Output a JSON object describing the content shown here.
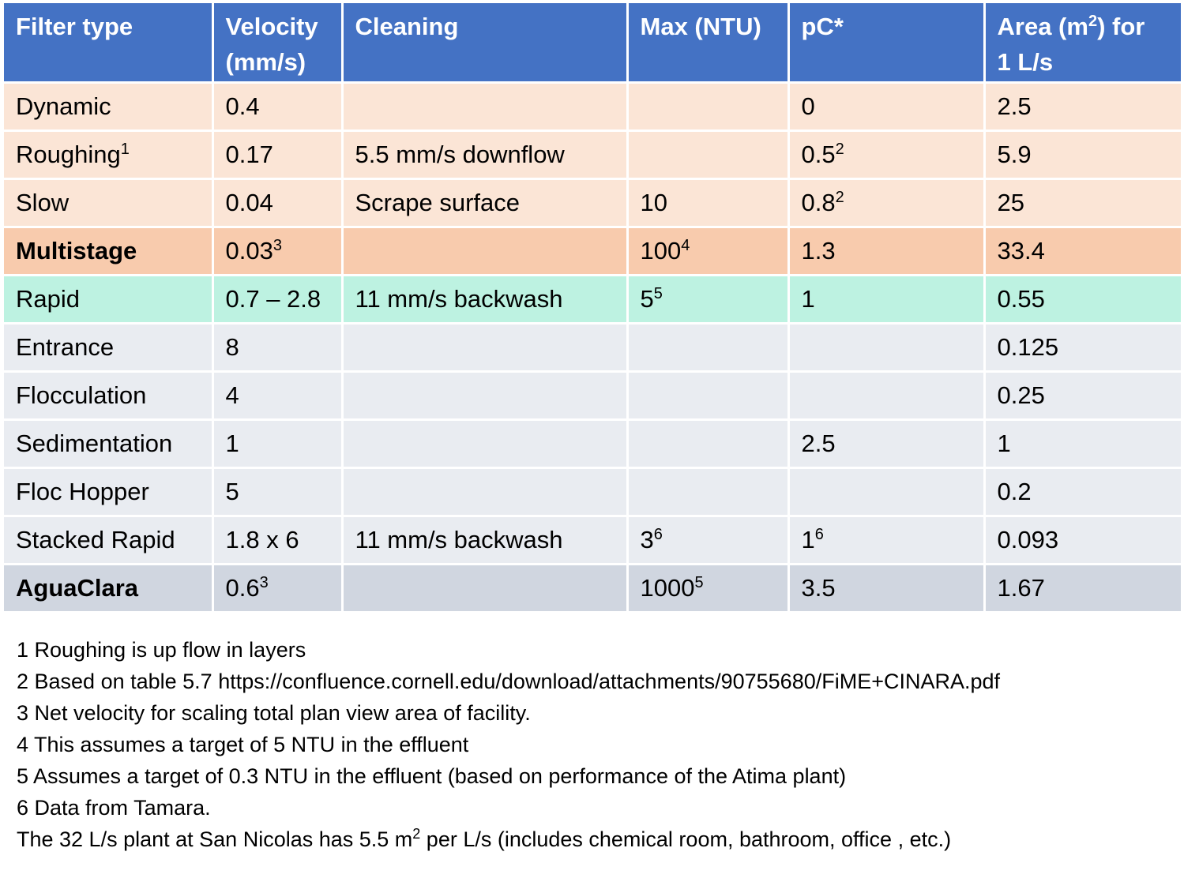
{
  "header": {
    "filter_type": "Filter type",
    "velocity_line1": "Velocity",
    "velocity_line2": "(mm/s)",
    "cleaning": "Cleaning",
    "max_ntu": "Max (NTU)",
    "pc": "pC*",
    "area_pre": "Area (m",
    "area_sup": "2",
    "area_post": ") for",
    "area_line2": "1 L/s"
  },
  "rows": [
    {
      "name": "Dynamic",
      "name_sup": "",
      "velocity": "0.4",
      "velocity_sup": "",
      "cleaning": "",
      "max": "",
      "max_sup": "",
      "pc": "0",
      "pc_sup": "",
      "area": "2.5"
    },
    {
      "name": "Roughing",
      "name_sup": "1",
      "velocity": "0.17",
      "velocity_sup": "",
      "cleaning": "5.5 mm/s downflow",
      "max": "",
      "max_sup": "",
      "pc": "0.5",
      "pc_sup": "2",
      "area": "5.9"
    },
    {
      "name": "Slow",
      "name_sup": "",
      "velocity": "0.04",
      "velocity_sup": "",
      "cleaning": "Scrape surface",
      "max": "10",
      "max_sup": "",
      "pc": "0.8",
      "pc_sup": "2",
      "area": "25"
    },
    {
      "name": "Multistage",
      "name_sup": "",
      "velocity": "0.03",
      "velocity_sup": "3",
      "cleaning": "",
      "max": "100",
      "max_sup": "4",
      "pc": "1.3",
      "pc_sup": "",
      "area": "33.4"
    },
    {
      "name": "Rapid",
      "name_sup": "",
      "velocity": "0.7 – 2.8",
      "velocity_sup": "",
      "cleaning": "11 mm/s backwash",
      "max": "5",
      "max_sup": "5",
      "pc": "1",
      "pc_sup": "",
      "area": "0.55"
    },
    {
      "name": "Entrance",
      "name_sup": "",
      "velocity": "8",
      "velocity_sup": "",
      "cleaning": "",
      "max": "",
      "max_sup": "",
      "pc": "",
      "pc_sup": "",
      "area": "0.125"
    },
    {
      "name": "Flocculation",
      "name_sup": "",
      "velocity": "4",
      "velocity_sup": "",
      "cleaning": "",
      "max": "",
      "max_sup": "",
      "pc": "",
      "pc_sup": "",
      "area": "0.25"
    },
    {
      "name": "Sedimentation",
      "name_sup": "",
      "velocity": "1",
      "velocity_sup": "",
      "cleaning": "",
      "max": "",
      "max_sup": "",
      "pc": "2.5",
      "pc_sup": "",
      "area": "1"
    },
    {
      "name": "Floc Hopper",
      "name_sup": "",
      "velocity": "5",
      "velocity_sup": "",
      "cleaning": "",
      "max": "",
      "max_sup": "",
      "pc": "",
      "pc_sup": "",
      "area": "0.2"
    },
    {
      "name": "Stacked Rapid",
      "name_sup": "",
      "velocity": "1.8 x 6",
      "velocity_sup": "",
      "cleaning": "11 mm/s backwash",
      "max": "3",
      "max_sup": "6",
      "pc": "1",
      "pc_sup": "6",
      "area": "0.093"
    },
    {
      "name": "AguaClara",
      "name_sup": "",
      "velocity": "0.6",
      "velocity_sup": "3",
      "cleaning": "",
      "max": "1000",
      "max_sup": "5",
      "pc": "3.5",
      "pc_sup": "",
      "area": "1.67"
    }
  ],
  "notes": {
    "n1": "1 Roughing is up flow in layers",
    "n2": "2 Based on table 5.7 https://confluence.cornell.edu/download/attachments/90755680/FiME+CINARA.pdf",
    "n3": "3 Net velocity for scaling total plan view area of facility.",
    "n4": "4 This assumes a target of 5 NTU in the effluent",
    "n5": "5 Assumes a target of 0.3 NTU in the effluent (based on performance of the Atima plant)",
    "n6": "6 Data from Tamara.",
    "n7_pre": "The 32 L/s plant at San Nicolas has 5.5 m",
    "n7_sup": "2",
    "n7_post": " per L/s (includes chemical room, bathroom, office , etc.)"
  },
  "colors": {
    "header_bg": "#4472c4",
    "passive_rows": "#fbe5d6",
    "multistage_row": "#f8cbad",
    "rapid_row": "#bdf2e1",
    "aguaclara_rows": "#e9ecf1",
    "aguaclara_total_row": "#d0d6e0"
  }
}
